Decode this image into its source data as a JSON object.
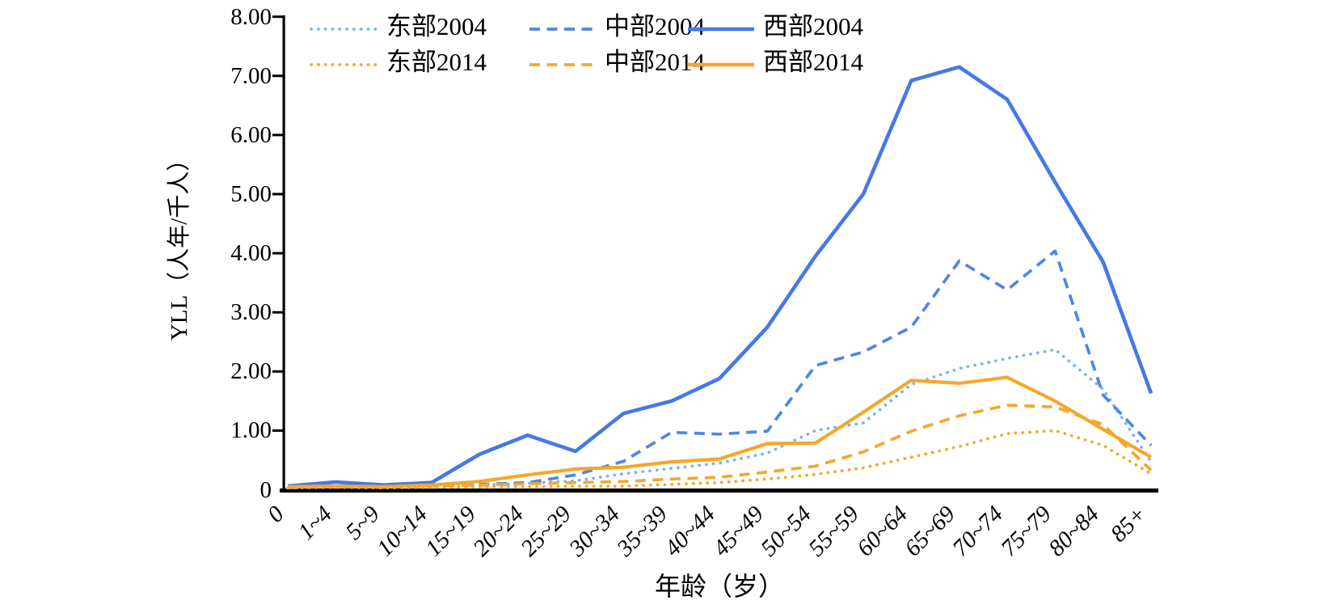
{
  "y_axis": {
    "label": "YLL（人年/千人）",
    "tick_labels": [
      "0",
      "1.00",
      "2.00",
      "3.00",
      "4.00",
      "5.00",
      "6.00",
      "7.00",
      "8.00"
    ],
    "min": 0,
    "max": 8
  },
  "x_axis": {
    "label": "年龄（岁）",
    "categories": [
      "0",
      "1~4",
      "5~9",
      "10~14",
      "15~19",
      "20~24",
      "25~29",
      "30~34",
      "35~39",
      "40~44",
      "45~49",
      "50~54",
      "55~59",
      "60~64",
      "65~69",
      "70~74",
      "75~79",
      "80~84",
      "85+"
    ]
  },
  "legend": {
    "rows": 2,
    "columns": 3,
    "items": [
      {
        "label": "东部2004",
        "series": "east2004"
      },
      {
        "label": "中部2004",
        "series": "mid2004"
      },
      {
        "label": "西部2004",
        "series": "west2004"
      },
      {
        "label": "东部2014",
        "series": "east2014"
      },
      {
        "label": "中部2014",
        "series": "mid2014"
      },
      {
        "label": "西部2014",
        "series": "west2014"
      }
    ]
  },
  "colors": {
    "light_blue": "#7db4ea",
    "medium_blue": "#4d86e8",
    "blue": "#4579e6",
    "orange": "#f5a72b",
    "axis_black": "#000000"
  },
  "chart_data": {
    "type": "line",
    "title": "",
    "xlabel": "年龄（岁）",
    "ylabel": "YLL（人年/千人）",
    "ylim": [
      0,
      8
    ],
    "grid": false,
    "legend_position": "top-left-inside",
    "categories": [
      "0",
      "1~4",
      "5~9",
      "10~14",
      "15~19",
      "20~24",
      "25~29",
      "30~34",
      "35~39",
      "40~44",
      "45~49",
      "50~54",
      "55~59",
      "60~64",
      "65~69",
      "70~74",
      "75~79",
      "80~84",
      "85+"
    ],
    "series": [
      {
        "name": "东部2004",
        "key": "east2004",
        "line_style": "dotted",
        "color": "#7db4ea",
        "values": [
          0.03,
          0.05,
          0.04,
          0.06,
          0.08,
          0.11,
          0.15,
          0.27,
          0.36,
          0.45,
          0.62,
          1.0,
          1.13,
          1.78,
          2.05,
          2.22,
          2.37,
          1.7,
          0.47
        ]
      },
      {
        "name": "中部2004",
        "key": "mid2004",
        "line_style": "dashed",
        "color": "#4d86e8",
        "values": [
          0.03,
          0.05,
          0.04,
          0.08,
          0.09,
          0.12,
          0.25,
          0.48,
          0.97,
          0.94,
          0.99,
          2.1,
          2.33,
          2.75,
          3.87,
          3.38,
          4.04,
          1.6,
          0.75
        ]
      },
      {
        "name": "西部2004",
        "key": "west2004",
        "line_style": "solid",
        "color": "#4579e6",
        "values": [
          0.06,
          0.13,
          0.08,
          0.12,
          0.6,
          0.92,
          0.65,
          1.29,
          1.5,
          1.88,
          2.75,
          3.95,
          5.0,
          6.92,
          7.15,
          6.6,
          5.2,
          3.85,
          1.63
        ]
      },
      {
        "name": "东部2014",
        "key": "east2014",
        "line_style": "dotted",
        "color": "#f5a72b",
        "values": [
          0.03,
          0.04,
          0.03,
          0.04,
          0.05,
          0.05,
          0.06,
          0.06,
          0.09,
          0.12,
          0.18,
          0.26,
          0.37,
          0.55,
          0.73,
          0.95,
          1.0,
          0.75,
          0.27
        ]
      },
      {
        "name": "中部2014",
        "key": "mid2014",
        "line_style": "dashed",
        "color": "#f5a72b",
        "values": [
          0.04,
          0.05,
          0.04,
          0.06,
          0.08,
          0.1,
          0.12,
          0.14,
          0.18,
          0.21,
          0.3,
          0.4,
          0.64,
          0.99,
          1.25,
          1.43,
          1.4,
          1.1,
          0.33
        ]
      },
      {
        "name": "西部2014",
        "key": "west2014",
        "line_style": "solid",
        "color": "#f5a72b",
        "values": [
          0.05,
          0.06,
          0.05,
          0.08,
          0.14,
          0.25,
          0.35,
          0.38,
          0.47,
          0.52,
          0.78,
          0.79,
          1.31,
          1.85,
          1.8,
          1.9,
          1.5,
          1.02,
          0.55
        ]
      }
    ]
  }
}
